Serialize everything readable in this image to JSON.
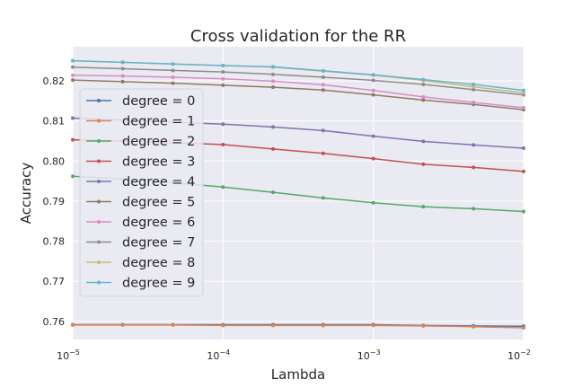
{
  "chart_data": {
    "type": "line",
    "title": "Cross validation for the RR",
    "xlabel": "Lambda",
    "ylabel": "Accuracy",
    "xscale": "log",
    "xlim": [
      1e-05,
      0.01
    ],
    "ylim": [
      0.7555,
      0.8285
    ],
    "x_ticks": [
      {
        "value": 1e-05,
        "base": "10",
        "exp": "−5"
      },
      {
        "value": 0.0001,
        "base": "10",
        "exp": "−4"
      },
      {
        "value": 0.001,
        "base": "10",
        "exp": "−3"
      },
      {
        "value": 0.01,
        "base": "10",
        "exp": "−2"
      }
    ],
    "y_ticks": [
      {
        "value": 0.76,
        "label": "0.76"
      },
      {
        "value": 0.77,
        "label": "0.77"
      },
      {
        "value": 0.78,
        "label": "0.78"
      },
      {
        "value": 0.79,
        "label": "0.79"
      },
      {
        "value": 0.8,
        "label": "0.80"
      },
      {
        "value": 0.81,
        "label": "0.81"
      },
      {
        "value": 0.82,
        "label": "0.82"
      }
    ],
    "grid": true,
    "legend_position": "upper-left",
    "x": [
      1e-05,
      2.15e-05,
      4.64e-05,
      0.0001,
      0.000215,
      0.000464,
      0.001,
      0.00215,
      0.00464,
      0.01
    ],
    "series": [
      {
        "name": "degree = 0",
        "color": "#4c72b0",
        "values": [
          0.7592,
          0.7592,
          0.7592,
          0.7592,
          0.7592,
          0.7592,
          0.7592,
          0.759,
          0.7589,
          0.7588
        ]
      },
      {
        "name": "degree = 1",
        "color": "#dd8452",
        "values": [
          0.7591,
          0.7591,
          0.7591,
          0.759,
          0.759,
          0.759,
          0.759,
          0.7589,
          0.7587,
          0.7584
        ]
      },
      {
        "name": "degree = 2",
        "color": "#55a868",
        "values": [
          0.7962,
          0.7955,
          0.7946,
          0.7935,
          0.7922,
          0.7908,
          0.7896,
          0.7886,
          0.7881,
          0.7874
        ]
      },
      {
        "name": "degree = 3",
        "color": "#c44e52",
        "values": [
          0.8053,
          0.805,
          0.8046,
          0.8041,
          0.803,
          0.8019,
          0.8006,
          0.7992,
          0.7984,
          0.7974
        ]
      },
      {
        "name": "degree = 4",
        "color": "#8172b3",
        "values": [
          0.8107,
          0.8102,
          0.8097,
          0.8092,
          0.8085,
          0.8076,
          0.8062,
          0.8049,
          0.804,
          0.8032
        ]
      },
      {
        "name": "degree = 5",
        "color": "#937860",
        "values": [
          0.8202,
          0.8198,
          0.8194,
          0.8189,
          0.8184,
          0.8177,
          0.8165,
          0.8152,
          0.8141,
          0.8128
        ]
      },
      {
        "name": "degree = 6",
        "color": "#da8bc3",
        "values": [
          0.8214,
          0.8212,
          0.8209,
          0.8205,
          0.8199,
          0.819,
          0.8176,
          0.816,
          0.8146,
          0.8133
        ]
      },
      {
        "name": "degree = 7",
        "color": "#8c8c8c",
        "values": [
          0.8234,
          0.823,
          0.8226,
          0.8222,
          0.8216,
          0.8209,
          0.8201,
          0.8191,
          0.8178,
          0.8165
        ]
      },
      {
        "name": "degree = 8",
        "color": "#ccb974",
        "values": [
          0.825,
          0.8246,
          0.8242,
          0.8238,
          0.8234,
          0.8224,
          0.8214,
          0.8201,
          0.8185,
          0.817
        ]
      },
      {
        "name": "degree = 9",
        "color": "#64b5cd",
        "values": [
          0.825,
          0.8246,
          0.8242,
          0.8238,
          0.8235,
          0.8225,
          0.8215,
          0.8203,
          0.8191,
          0.8176
        ]
      }
    ]
  }
}
